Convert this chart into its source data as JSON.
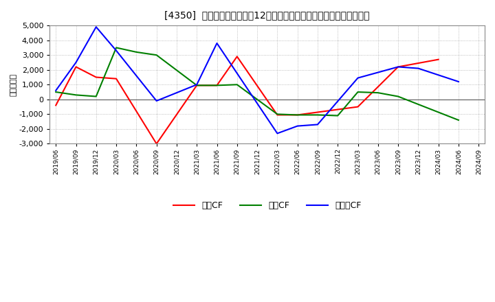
{
  "title": "[4350]  キャッシュフローの12か月移動合計の対前年同期増減額の推移",
  "ylabel": "（百万円）",
  "background_color": "#ffffff",
  "plot_bg_color": "#ffffff",
  "grid_color": "#aaaaaa",
  "ylim": [
    -3000,
    5000
  ],
  "yticks": [
    -3000,
    -2000,
    -1000,
    0,
    1000,
    2000,
    3000,
    4000,
    5000
  ],
  "dates": [
    "2019/06",
    "2019/09",
    "2019/12",
    "2020/03",
    "2020/06",
    "2020/09",
    "2020/12",
    "2021/03",
    "2021/06",
    "2021/09",
    "2021/12",
    "2022/03",
    "2022/06",
    "2022/09",
    "2022/12",
    "2023/03",
    "2023/06",
    "2023/09",
    "2023/12",
    "2024/03",
    "2024/06",
    "2024/09"
  ],
  "series": {
    "eigyo": {
      "label": "営業CF",
      "color": "#ff0000",
      "data_x": [
        0,
        1,
        2,
        3,
        5,
        7,
        8,
        9,
        11,
        12,
        15,
        17,
        19
      ],
      "data_y": [
        -400,
        2200,
        1500,
        1400,
        -3000,
        950,
        950,
        2900,
        -1050,
        -1050,
        -500,
        2200,
        2700
      ]
    },
    "toshi": {
      "label": "投資CF",
      "color": "#008000",
      "data_x": [
        0,
        1,
        2,
        3,
        4,
        5,
        7,
        8,
        9,
        11,
        12,
        13,
        14,
        15,
        16,
        17,
        20
      ],
      "data_y": [
        500,
        300,
        200,
        3500,
        3200,
        3000,
        950,
        950,
        1000,
        -1000,
        -1050,
        -1050,
        -1100,
        500,
        450,
        200,
        -1400
      ]
    },
    "free": {
      "label": "フリーCF",
      "color": "#0000ff",
      "data_x": [
        0,
        1,
        2,
        3,
        5,
        7,
        8,
        11,
        12,
        13,
        15,
        17,
        18,
        20
      ],
      "data_y": [
        600,
        2500,
        4900,
        3300,
        -100,
        1000,
        3800,
        -2300,
        -1800,
        -1700,
        1450,
        2200,
        2100,
        1200
      ]
    }
  }
}
